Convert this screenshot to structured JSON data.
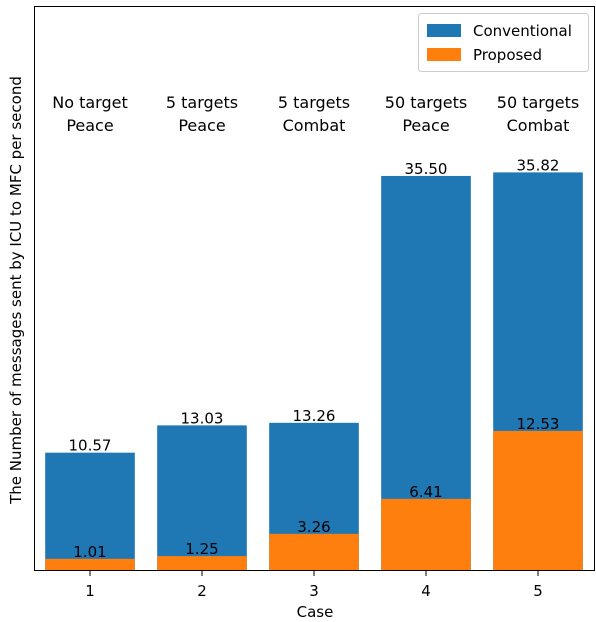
{
  "chart_data": {
    "type": "bar",
    "categories": [
      "1",
      "2",
      "3",
      "4",
      "5"
    ],
    "case_labels": [
      [
        "No target",
        "Peace"
      ],
      [
        "5 targets",
        "Peace"
      ],
      [
        "5 targets",
        "Combat"
      ],
      [
        "50 targets",
        "Peace"
      ],
      [
        "50 targets",
        "Combat"
      ]
    ],
    "series": [
      {
        "name": "Conventional",
        "color": "#1f77b4",
        "values": [
          10.57,
          13.03,
          13.26,
          35.5,
          35.82
        ],
        "labels": [
          "10.57",
          "13.03",
          "13.26",
          "35.50",
          "35.82"
        ]
      },
      {
        "name": "Proposed",
        "color": "#ff7f0e",
        "values": [
          1.01,
          1.25,
          3.26,
          6.41,
          12.53
        ],
        "labels": [
          "1.01",
          "1.25",
          "3.26",
          "6.41",
          "12.53"
        ]
      }
    ],
    "xlabel": "Case",
    "ylabel": "The Number of messages sent by ICU to MFC per second",
    "ylim": [
      0,
      50
    ],
    "yticks_visible": false,
    "grid": false,
    "legend_position": "top-right"
  }
}
